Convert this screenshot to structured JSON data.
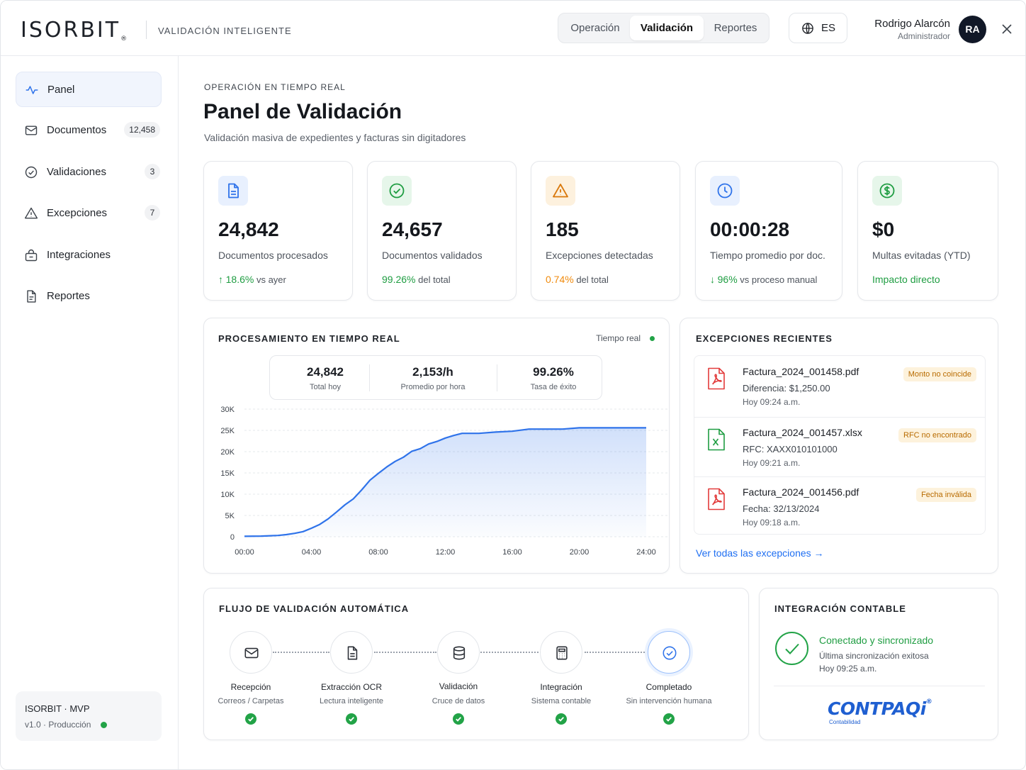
{
  "brand": {
    "logo": "ISORBIT",
    "logo_mark": "®",
    "subtitle": "VALIDACIÓN INTELIGENTE"
  },
  "header": {
    "tabs": [
      {
        "label": "Operación",
        "active": false
      },
      {
        "label": "Validación",
        "active": true
      },
      {
        "label": "Reportes",
        "active": false
      }
    ],
    "language": {
      "icon": "globe-icon",
      "code": "ES"
    },
    "user": {
      "name": "Rodrigo Alarcón",
      "role": "Administrador",
      "initials": "RA"
    },
    "close_icon": "close-icon"
  },
  "sidebar": {
    "items": [
      {
        "label": "Panel",
        "icon": "activity-icon",
        "active": true,
        "badge": ""
      },
      {
        "label": "Documentos",
        "icon": "mail-icon",
        "active": false,
        "badge": "12,458"
      },
      {
        "label": "Validaciones",
        "icon": "check-circle-icon",
        "active": false,
        "badge": "3"
      },
      {
        "label": "Excepciones",
        "icon": "warning-icon",
        "active": false,
        "badge": "7"
      },
      {
        "label": "Integraciones",
        "icon": "integrations-icon",
        "active": false,
        "badge": ""
      },
      {
        "label": "Reportes",
        "icon": "report-icon",
        "active": false,
        "badge": ""
      }
    ],
    "env": {
      "title": "ISORBIT · MVP",
      "subtitle": "v1.0 · Producción",
      "status_color": "#22a347"
    }
  },
  "page": {
    "eyebrow": "OPERACIÓN EN TIEMPO REAL",
    "title": "Panel de Validación",
    "subtitle": "Validación masiva de expedientes y facturas sin digitadores"
  },
  "kpis": [
    {
      "icon": "document-icon",
      "value": "24,842",
      "label": "Documentos procesados",
      "foot_arrow": "↑",
      "foot_highlight": "18.6%",
      "foot_text": "vs ayer",
      "color": "#1f9d42"
    },
    {
      "icon": "check-circle-icon",
      "value": "24,657",
      "label": "Documentos validados",
      "foot_arrow": "",
      "foot_highlight": "99.26%",
      "foot_text": "del total",
      "color": "#1f9d42"
    },
    {
      "icon": "warning-icon",
      "value": "185",
      "label": "Excepciones detectadas",
      "foot_arrow": "",
      "foot_highlight": "0.74%",
      "foot_text": "del total",
      "color": "#f08a0c"
    },
    {
      "icon": "clock-icon",
      "value": "00:00:28",
      "label": "Tiempo promedio por doc.",
      "foot_arrow": "↓",
      "foot_highlight": "96%",
      "foot_text": "vs proceso manual",
      "color": "#1f9d42"
    },
    {
      "icon": "dollar-icon",
      "value": "$0",
      "label": "Multas evitadas (YTD)",
      "foot_arrow": "",
      "foot_highlight": "Impacto directo",
      "foot_text": "",
      "color": "#1f9d42"
    }
  ],
  "processing": {
    "title": "PROCESAMIENTO EN TIEMPO REAL",
    "live_label": "Tiempo real",
    "live_color": "#22a347",
    "stats": [
      {
        "value": "24,842",
        "label": "Total hoy"
      },
      {
        "value": "2,153/h",
        "label": "Promedio por hora"
      },
      {
        "value": "99.26%",
        "label": "Tasa de éxito"
      }
    ]
  },
  "chart_data": {
    "type": "area",
    "title": "",
    "xlabel": "",
    "ylabel": "",
    "x_ticks": [
      "00:00",
      "04:00",
      "08:00",
      "12:00",
      "16:00",
      "20:00",
      "24:00"
    ],
    "y_ticks": [
      "0",
      "5K",
      "10K",
      "15K",
      "20K",
      "25K",
      "30K"
    ],
    "ylim": [
      0,
      30000
    ],
    "xlim": [
      0,
      24
    ],
    "grid": true,
    "color": "#2f73ea",
    "series": [
      {
        "x": [
          0,
          1,
          2,
          2.5,
          3,
          3.5,
          4,
          4.5,
          5,
          5.5,
          6,
          6.5,
          7,
          7.5,
          8,
          8.5,
          9,
          9.5,
          10,
          10.5,
          11,
          11.5,
          12,
          12.5,
          13,
          14,
          15,
          16,
          17,
          18,
          19,
          20,
          21,
          22,
          23,
          24
        ],
        "y": [
          100,
          150,
          300,
          500,
          800,
          1200,
          2000,
          2900,
          4200,
          5800,
          7500,
          8900,
          11000,
          13300,
          14900,
          16400,
          17700,
          18700,
          20100,
          20700,
          21800,
          22400,
          23200,
          23800,
          24300,
          24300,
          24600,
          24800,
          25300,
          25300,
          25300,
          25600,
          25600,
          25600,
          25600,
          25600
        ]
      }
    ]
  },
  "exceptions": {
    "title": "EXCEPCIONES RECIENTES",
    "items": [
      {
        "file": "Factura_2024_001458.pdf",
        "type": "pdf",
        "detail": "Diferencia: $1,250.00",
        "time": "Hoy 09:24 a.m.",
        "tag": "Monto no coincide"
      },
      {
        "file": "Factura_2024_001457.xlsx",
        "type": "xlsx",
        "detail": "RFC: XAXX010101000",
        "time": "Hoy 09:21 a.m.",
        "tag": "RFC no encontrado"
      },
      {
        "file": "Factura_2024_001456.pdf",
        "type": "pdf",
        "detail": "Fecha: 32/13/2024",
        "time": "Hoy 09:18 a.m.",
        "tag": "Fecha inválida"
      }
    ],
    "view_all": "Ver todas las excepciones",
    "view_all_arrow": "→"
  },
  "flow": {
    "title": "FLUJO DE VALIDACIÓN AUTOMÁTICA",
    "steps": [
      {
        "icon": "mail-icon",
        "label": "Recepción",
        "sub": "Correos / Carpetas",
        "done": true
      },
      {
        "icon": "document-icon",
        "label": "Extracción OCR",
        "sub": "Lectura inteligente",
        "done": true
      },
      {
        "icon": "database-icon",
        "label": "Validación",
        "sub": "Cruce de datos",
        "done": true
      },
      {
        "icon": "calculator-icon",
        "label": "Integración",
        "sub": "Sistema contable",
        "done": true
      },
      {
        "icon": "check-circle-icon",
        "label": "Completado",
        "sub": "Sin intervención humana",
        "done": true
      }
    ]
  },
  "integration": {
    "title": "INTEGRACIÓN CONTABLE",
    "status": "Conectado y sincronizado",
    "sub": "Última sincronización exitosa",
    "time": "Hoy 09:25 a.m.",
    "logo_text": "CONTPAQ",
    "logo_i": "i",
    "logo_mark": "®",
    "logo_sub": "Contabilidad",
    "status_color": "#22a347",
    "logo_color": "#1f5fd1"
  }
}
